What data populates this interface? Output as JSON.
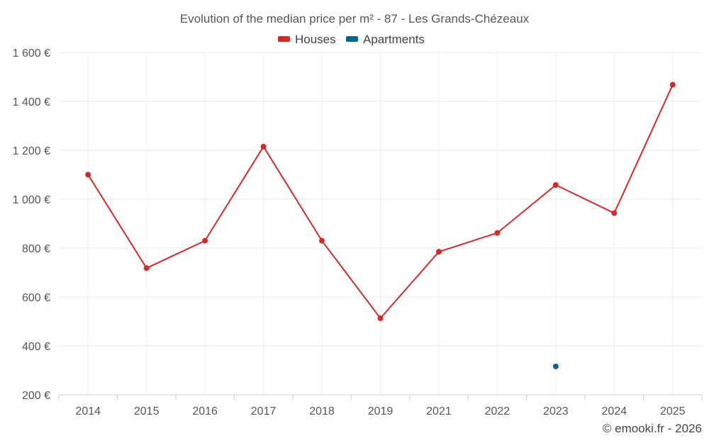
{
  "chart_data": {
    "type": "line",
    "title": "Evolution of the median price per m² - 87 - Les Grands-Chézeaux",
    "categories": [
      "2014",
      "2015",
      "2016",
      "2017",
      "2018",
      "2019",
      "2021",
      "2022",
      "2023",
      "2024",
      "2025"
    ],
    "y_ticks": [
      "200 €",
      "400 €",
      "600 €",
      "800 €",
      "1 000 €",
      "1 200 €",
      "1 400 €",
      "1 600 €"
    ],
    "y_tick_values": [
      200,
      400,
      600,
      800,
      1000,
      1200,
      1400,
      1600
    ],
    "ylim": [
      200,
      1600
    ],
    "xlabel": "",
    "ylabel": "",
    "grid": true,
    "legend_position": "top-center",
    "series": [
      {
        "name": "Houses",
        "color": "#d32a2a",
        "values": [
          1100,
          718,
          830,
          1215,
          830,
          513,
          785,
          862,
          1058,
          943,
          1468
        ]
      },
      {
        "name": "Apartments",
        "color": "#0b6496",
        "values": [
          null,
          null,
          null,
          null,
          null,
          null,
          null,
          null,
          316,
          null,
          null
        ]
      }
    ]
  },
  "credit": "© emooki.fr - 2026"
}
